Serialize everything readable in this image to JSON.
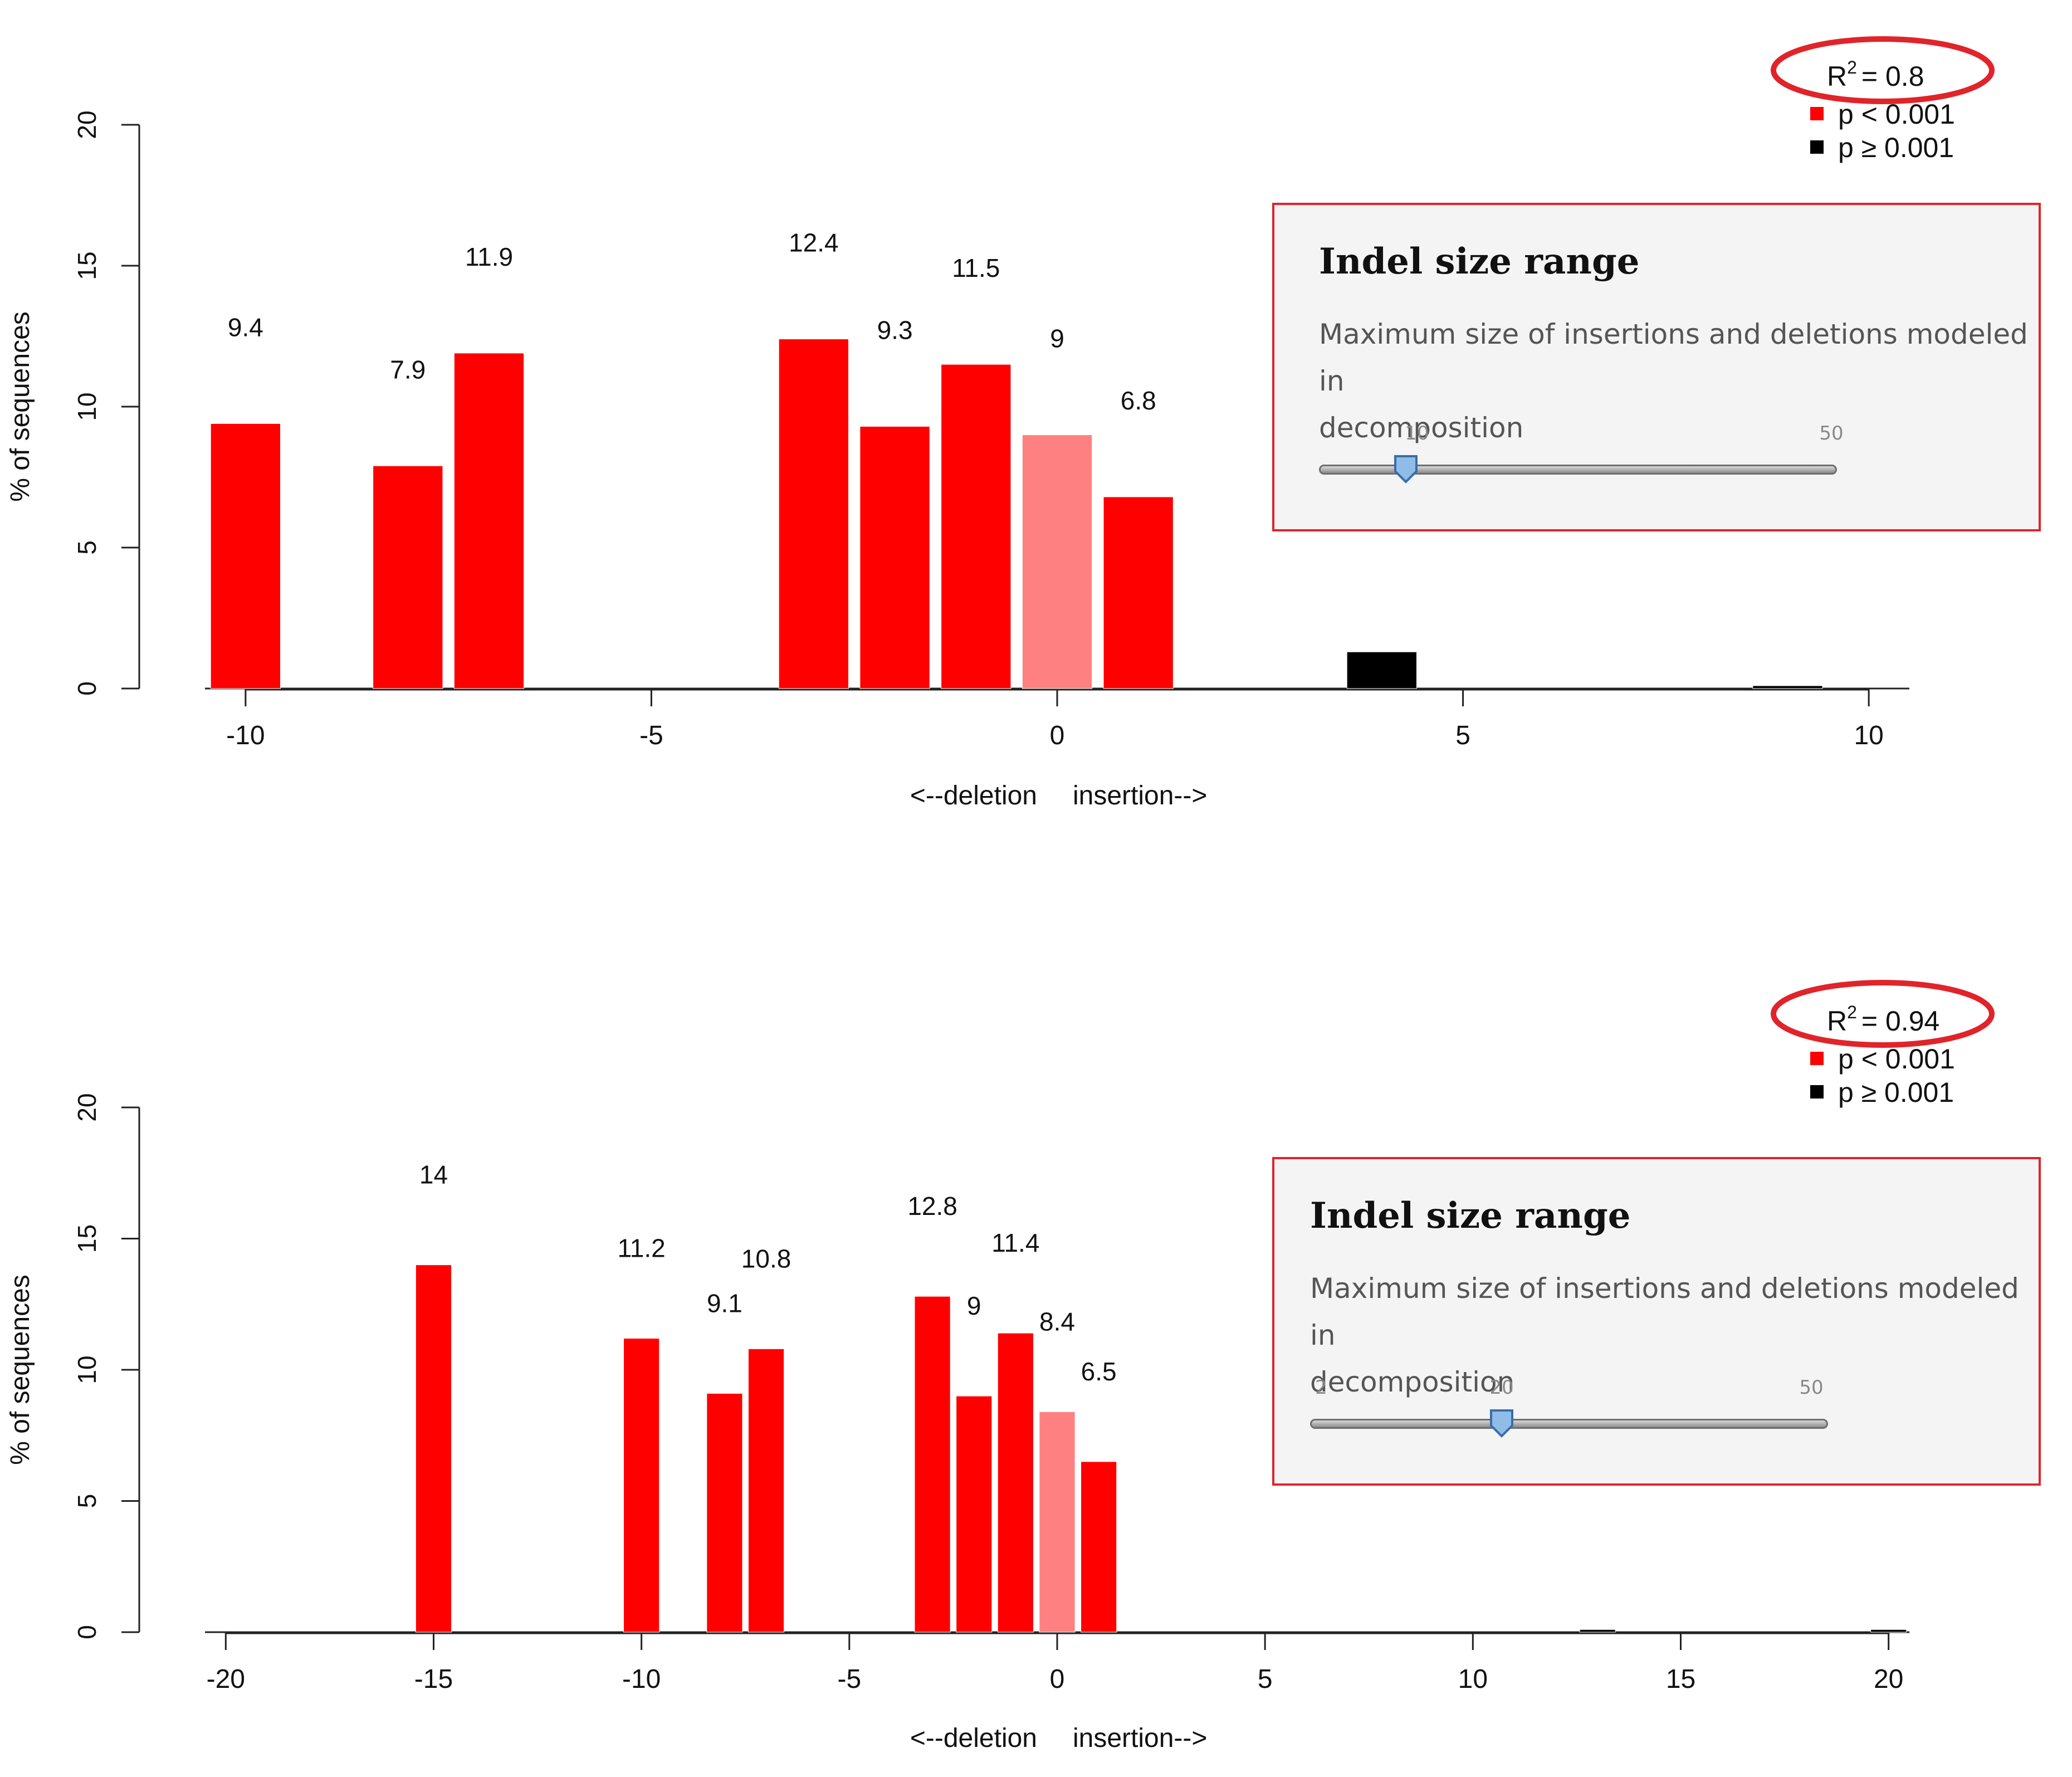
{
  "chart_data": [
    {
      "type": "bar",
      "ylabel": "% of sequences",
      "xlabel_left": "<--deletion",
      "xlabel_right": "insertion-->",
      "xlim": [
        -10.5,
        10.5
      ],
      "ylim": [
        0,
        20
      ],
      "xticks": [
        "-10",
        "-5",
        "0",
        "5",
        "10"
      ],
      "yticks": [
        "0",
        "5",
        "10",
        "15",
        "20"
      ],
      "r2_label": "R",
      "r2_sup": "2",
      "r2_value": "= 0.8",
      "legend": [
        "p < 0.001",
        "p ≥ 0.001"
      ],
      "bars": [
        {
          "x": -10,
          "value": 9.4,
          "label": "9.4",
          "sig": "red"
        },
        {
          "x": -8,
          "value": 7.9,
          "label": "7.9",
          "sig": "red"
        },
        {
          "x": -7,
          "value": 11.9,
          "label": "11.9",
          "sig": "red"
        },
        {
          "x": -3,
          "value": 12.4,
          "label": "12.4",
          "sig": "red"
        },
        {
          "x": -2,
          "value": 9.3,
          "label": "9.3",
          "sig": "red"
        },
        {
          "x": -1,
          "value": 11.5,
          "label": "11.5",
          "sig": "red"
        },
        {
          "x": 0,
          "value": 9,
          "label": "9",
          "sig": "pink"
        },
        {
          "x": 1,
          "value": 6.8,
          "label": "6.8",
          "sig": "red"
        },
        {
          "x": 4,
          "value": 1.3,
          "label": "",
          "sig": "black"
        },
        {
          "x": 9,
          "value": 0.1,
          "label": "",
          "sig": "black"
        }
      ]
    },
    {
      "type": "bar",
      "ylabel": "% of sequences",
      "xlabel_left": "<--deletion",
      "xlabel_right": "insertion-->",
      "xlim": [
        -20.5,
        20.5
      ],
      "ylim": [
        0,
        20
      ],
      "xticks": [
        "-20",
        "-15",
        "-10",
        "-5",
        "0",
        "5",
        "10",
        "15",
        "20"
      ],
      "yticks": [
        "0",
        "5",
        "10",
        "15",
        "20"
      ],
      "r2_label": "R",
      "r2_sup": "2",
      "r2_value": "= 0.94",
      "legend": [
        "p < 0.001",
        "p ≥ 0.001"
      ],
      "bars": [
        {
          "x": -15,
          "value": 14,
          "label": "14",
          "sig": "red"
        },
        {
          "x": -10,
          "value": 11.2,
          "label": "11.2",
          "sig": "red"
        },
        {
          "x": -8,
          "value": 9.1,
          "label": "9.1",
          "sig": "red"
        },
        {
          "x": -7,
          "value": 10.8,
          "label": "10.8",
          "sig": "red"
        },
        {
          "x": -3,
          "value": 12.8,
          "label": "12.8",
          "sig": "red"
        },
        {
          "x": -2,
          "value": 9,
          "label": "9",
          "sig": "red"
        },
        {
          "x": -1,
          "value": 11.4,
          "label": "11.4",
          "sig": "red"
        },
        {
          "x": 0,
          "value": 8.4,
          "label": "8.4",
          "sig": "pink"
        },
        {
          "x": 1,
          "value": 6.5,
          "label": "6.5",
          "sig": "red"
        },
        {
          "x": 13,
          "value": 0.1,
          "label": "",
          "sig": "black"
        },
        {
          "x": 20,
          "value": 0.1,
          "label": "",
          "sig": "black"
        }
      ]
    }
  ],
  "panels": [
    {
      "title": "Indel size range",
      "description_line1": "Maximum size of insertions and deletions modeled in",
      "description_line2": "decomposition",
      "slider_value": 10,
      "slider_value_label": "10",
      "slider_max_label": "50",
      "slider_min": 0,
      "slider_max": 50
    },
    {
      "title": "Indel size range",
      "description_line1": "Maximum size of insertions and deletions modeled in",
      "description_line2": "decomposition",
      "slider_value": 20,
      "slider_min_label": "2",
      "slider_value_label": "20",
      "slider_max_label": "50",
      "slider_min": 2,
      "slider_max": 50
    }
  ],
  "colors": {
    "sig_red": "#ff0000",
    "sig_pink": "#ff8080",
    "sig_black": "#000000",
    "highlight": "#e0242a"
  }
}
